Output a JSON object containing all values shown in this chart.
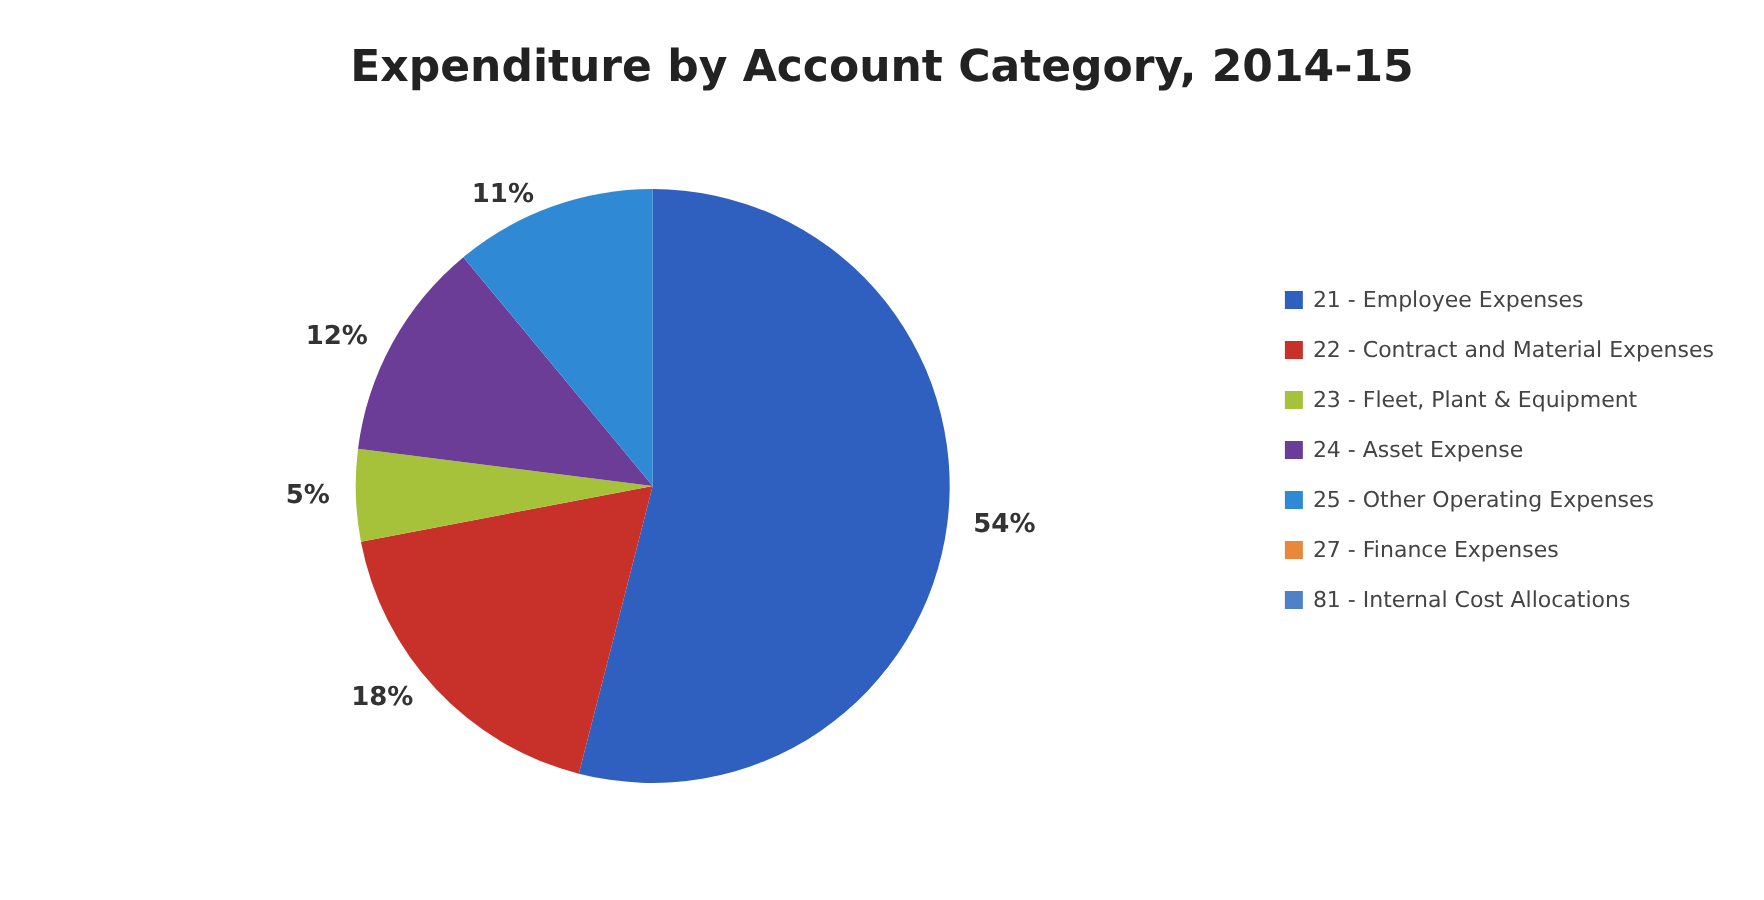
{
  "chart_data": {
    "type": "pie",
    "title": "Expenditure by Account Category, 2014-15",
    "categories": [
      "21 - Employee Expenses",
      "22 - Contract and Material Expenses",
      "23 - Fleet, Plant & Equipment",
      "24 - Asset Expense",
      "25 - Other Operating Expenses",
      "27 - Finance Expenses",
      "81 - Internal Cost Allocations"
    ],
    "values": [
      54,
      18,
      5,
      12,
      11,
      0,
      0
    ],
    "value_labels": [
      "54%",
      "18%",
      "5%",
      "12%",
      "11%",
      null,
      null
    ],
    "colors": [
      "#2f5fbf",
      "#c8302a",
      "#a6c23a",
      "#6b3d96",
      "#3089d4",
      "#e8883a",
      "#4f81c8"
    ],
    "legend": "right"
  }
}
